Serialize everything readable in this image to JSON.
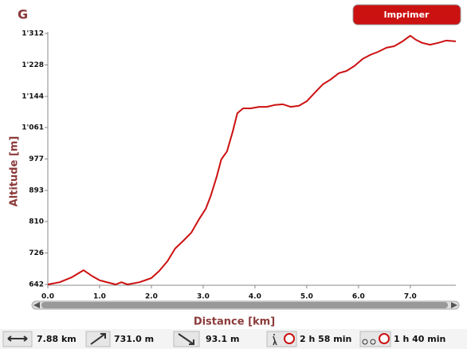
{
  "header": {
    "title": "G",
    "button": "Imprimer"
  },
  "chart_data": {
    "type": "line",
    "x_label": "Distance [km]",
    "y_label": "Altitude [m]",
    "x": [
      0,
      0.23,
      0.46,
      0.69,
      0.85,
      1.0,
      1.31,
      1.42,
      1.54,
      1.77,
      2.0,
      2.15,
      2.31,
      2.46,
      2.62,
      2.77,
      2.92,
      3.05,
      3.15,
      3.26,
      3.35,
      3.46,
      3.57,
      3.66,
      3.77,
      3.92,
      4.08,
      4.23,
      4.38,
      4.54,
      4.69,
      4.85,
      5.0,
      5.15,
      5.31,
      5.46,
      5.62,
      5.77,
      5.92,
      6.08,
      6.23,
      6.38,
      6.54,
      6.69,
      6.85,
      7.0,
      7.11,
      7.23,
      7.38,
      7.54,
      7.69,
      7.88
    ],
    "values": [
      642,
      648,
      661,
      680,
      665,
      653,
      642,
      648,
      642,
      648,
      659,
      678,
      704,
      738,
      759,
      780,
      816,
      844,
      880,
      929,
      976,
      997,
      1050,
      1099,
      1112,
      1112,
      1116,
      1116,
      1121,
      1123,
      1116,
      1119,
      1131,
      1153,
      1176,
      1189,
      1206,
      1212,
      1225,
      1244,
      1255,
      1263,
      1274,
      1278,
      1291,
      1306,
      1295,
      1287,
      1282,
      1287,
      1293,
      1291
    ],
    "color": "#cc1111",
    "xlim": [
      0,
      7.88
    ],
    "ylim": [
      642,
      1312
    ],
    "xticks": [
      {
        "value": 0,
        "label": "0.0"
      },
      {
        "value": 1,
        "label": "1.0"
      },
      {
        "value": 2,
        "label": "2.0"
      },
      {
        "value": 3,
        "label": "3.0"
      },
      {
        "value": 4,
        "label": "4.0"
      },
      {
        "value": 5,
        "label": "5.0"
      },
      {
        "value": 6,
        "label": "6.0"
      },
      {
        "value": 7,
        "label": "7.0"
      }
    ],
    "yticks": [
      642,
      726,
      810,
      893,
      977,
      {
        "value": 1061,
        "label": "1'061"
      },
      {
        "value": 1144,
        "label": "1'144"
      },
      {
        "value": 1228,
        "label": "1'228"
      },
      {
        "value": 1312,
        "label": "1'312"
      }
    ],
    "grid": false
  },
  "stats": [
    "7.88 km",
    "731.0 m",
    "93.1 m",
    "2 h 58 min",
    "1 h 40 min"
  ]
}
